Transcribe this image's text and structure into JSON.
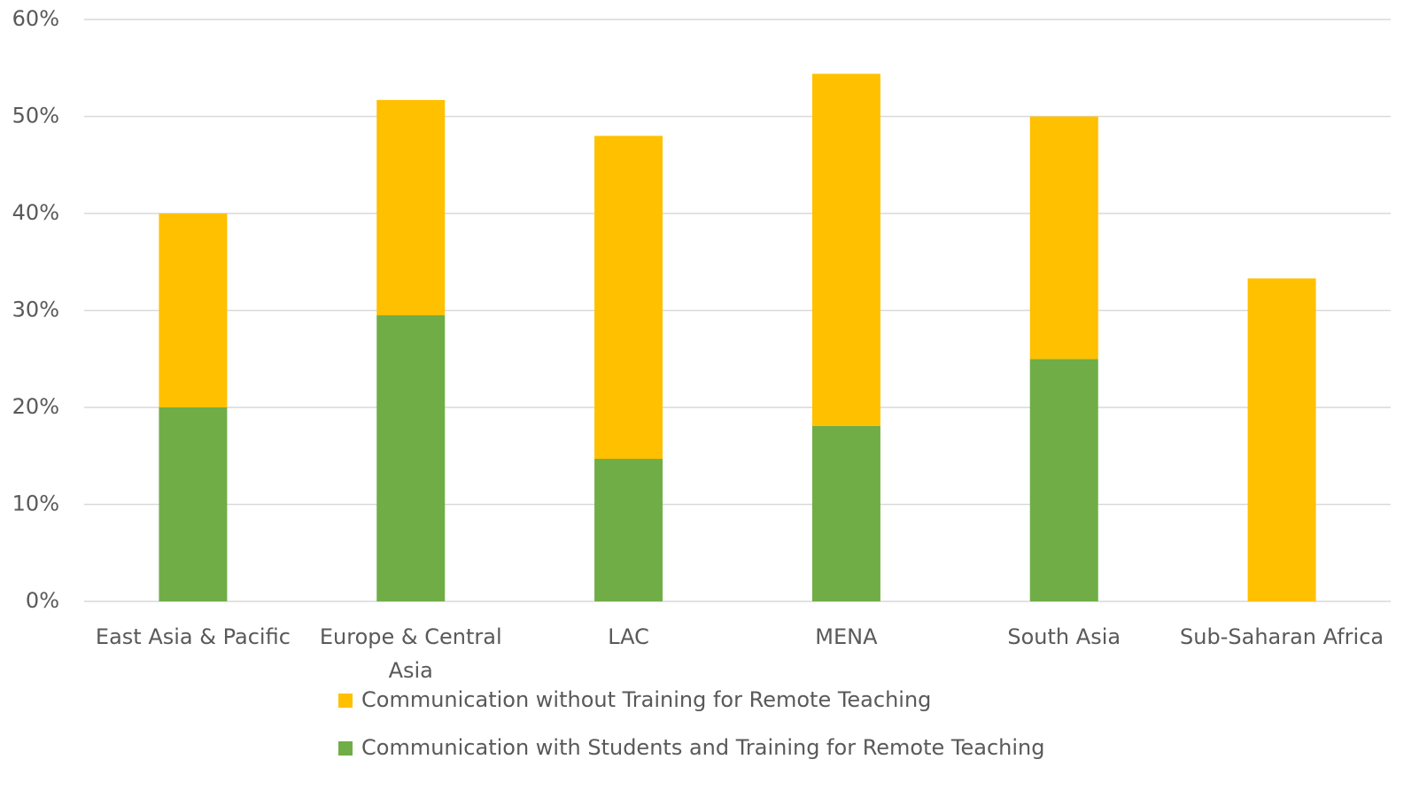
{
  "chart_data": {
    "type": "stacked_bar",
    "categories": [
      "East Asia & Pacific",
      "Europe & Central Asia",
      "LAC",
      "MENA",
      "South Asia",
      "Sub-Saharan Africa"
    ],
    "series": [
      {
        "name": "Communication with Students and Training for Remote Teaching",
        "color": "#70ad47",
        "values": [
          20,
          29.5,
          14.7,
          18.1,
          25,
          0
        ]
      },
      {
        "name": "Communication without Training for Remote Teaching",
        "color": "#ffc000",
        "values": [
          20,
          22.2,
          33.3,
          36.3,
          25,
          33.3
        ]
      }
    ],
    "ylim": [
      0,
      60
    ],
    "yticks": [
      {
        "value": 0,
        "label": "0%"
      },
      {
        "value": 10,
        "label": "10%"
      },
      {
        "value": 20,
        "label": "20%"
      },
      {
        "value": 30,
        "label": "30%"
      },
      {
        "value": 40,
        "label": "40%"
      },
      {
        "value": 50,
        "label": "50%"
      },
      {
        "value": 60,
        "label": "60%"
      }
    ],
    "grid": true
  }
}
